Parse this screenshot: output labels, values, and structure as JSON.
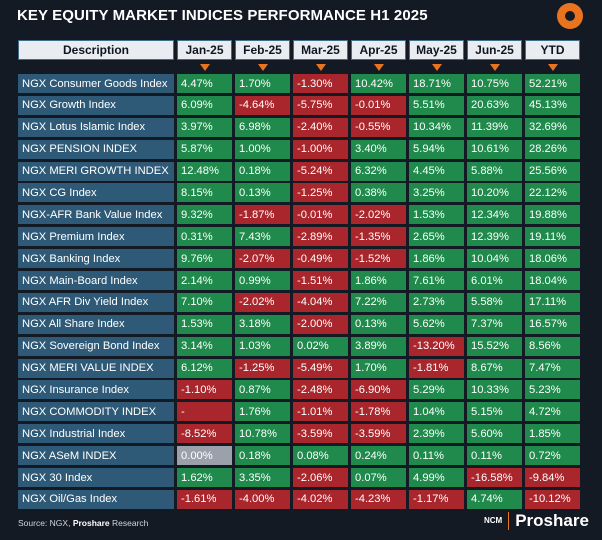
{
  "title": "KEY EQUITY MARKET INDICES PERFORMANCE H1 2025",
  "source_prefix": "Source: NGX, ",
  "source_brand": "Proshare",
  "source_suffix": " Research",
  "brand_small": "NCM",
  "brand_name": "Proshare",
  "colors": {
    "positive": "#1f8a4c",
    "negative": "#a8262c",
    "neutral": "#9aa1ab",
    "description": "#2e5a77",
    "accent": "#e8741f"
  },
  "chart_data": {
    "type": "table",
    "columns": [
      "Description",
      "Jan-25",
      "Feb-25",
      "Mar-25",
      "Apr-25",
      "May-25",
      "Jun-25",
      "YTD"
    ],
    "rows": [
      {
        "name": "NGX Consumer Goods Index",
        "values": [
          "4.47%",
          "1.70%",
          "-1.30%",
          "10.42%",
          "18.71%",
          "10.75%",
          "52.21%"
        ]
      },
      {
        "name": "NGX Growth Index",
        "values": [
          "6.09%",
          "-4.64%",
          "-5.75%",
          "-0.01%",
          "5.51%",
          "20.63%",
          "45.13%"
        ]
      },
      {
        "name": "NGX Lotus Islamic Index",
        "values": [
          "3.97%",
          "6.98%",
          "-2.40%",
          "-0.55%",
          "10.34%",
          "11.39%",
          "32.69%"
        ]
      },
      {
        "name": "NGX PENSION INDEX",
        "values": [
          "5.87%",
          "1.00%",
          "-1.00%",
          "3.40%",
          "5.94%",
          "10.61%",
          "28.26%"
        ]
      },
      {
        "name": "NGX MERI GROWTH INDEX",
        "values": [
          "12.48%",
          "0.18%",
          "-5.24%",
          "6.32%",
          "4.45%",
          "5.88%",
          "25.56%"
        ]
      },
      {
        "name": "NGX CG Index",
        "values": [
          "8.15%",
          "0.13%",
          "-1.25%",
          "0.38%",
          "3.25%",
          "10.20%",
          "22.12%"
        ]
      },
      {
        "name": "NGX-AFR Bank Value Index",
        "values": [
          "9.32%",
          "-1.87%",
          "-0.01%",
          "-2.02%",
          "1.53%",
          "12.34%",
          "19.88%"
        ]
      },
      {
        "name": "NGX Premium Index",
        "values": [
          "0.31%",
          "7.43%",
          "-2.89%",
          "-1.35%",
          "2.65%",
          "12.39%",
          "19.11%"
        ]
      },
      {
        "name": "NGX Banking Index",
        "values": [
          "9.76%",
          "-2.07%",
          "-0.49%",
          "-1.52%",
          "1.86%",
          "10.04%",
          "18.06%"
        ]
      },
      {
        "name": "NGX Main-Board Index",
        "values": [
          "2.14%",
          "0.99%",
          "-1.51%",
          "1.86%",
          "7.61%",
          "6.01%",
          "18.04%"
        ]
      },
      {
        "name": "NGX AFR Div Yield Index",
        "values": [
          "7.10%",
          "-2.02%",
          "-4.04%",
          "7.22%",
          "2.73%",
          "5.58%",
          "17.11%"
        ]
      },
      {
        "name": "NGX All Share Index",
        "values": [
          "1.53%",
          "3.18%",
          "-2.00%",
          "0.13%",
          "5.62%",
          "7.37%",
          "16.57%"
        ]
      },
      {
        "name": "NGX Sovereign Bond Index",
        "values": [
          "3.14%",
          "1.03%",
          "0.02%",
          "3.89%",
          "-13.20%",
          "15.52%",
          "8.56%"
        ]
      },
      {
        "name": "NGX MERI VALUE INDEX",
        "values": [
          "6.12%",
          "-1.25%",
          "-5.49%",
          "1.70%",
          "-1.81%",
          "8.67%",
          "7.47%"
        ]
      },
      {
        "name": "NGX Insurance Index",
        "values": [
          "-1.10%",
          "0.87%",
          "-2.48%",
          "-6.90%",
          "5.29%",
          "10.33%",
          "5.23%"
        ]
      },
      {
        "name": "NGX COMMODITY INDEX",
        "values": [
          "-",
          "1.76%",
          "-1.01%",
          "-1.78%",
          "1.04%",
          "5.15%",
          "4.72%"
        ]
      },
      {
        "name": "NGX Industrial Index",
        "values": [
          "-8.52%",
          "10.78%",
          "-3.59%",
          "-3.59%",
          "2.39%",
          "5.60%",
          "1.85%"
        ]
      },
      {
        "name": "NGX ASeM INDEX",
        "values": [
          "0.00%",
          "0.18%",
          "0.08%",
          "0.24%",
          "0.11%",
          "0.11%",
          "0.72%"
        ]
      },
      {
        "name": "NGX 30 Index",
        "values": [
          "1.62%",
          "3.35%",
          "-2.06%",
          "0.07%",
          "4.99%",
          "-16.58%",
          "-9.84%"
        ]
      },
      {
        "name": "NGX Oil/Gas Index",
        "values": [
          "-1.61%",
          "-4.00%",
          "-4.02%",
          "-4.23%",
          "-1.17%",
          "4.74%",
          "-10.12%"
        ]
      }
    ]
  }
}
